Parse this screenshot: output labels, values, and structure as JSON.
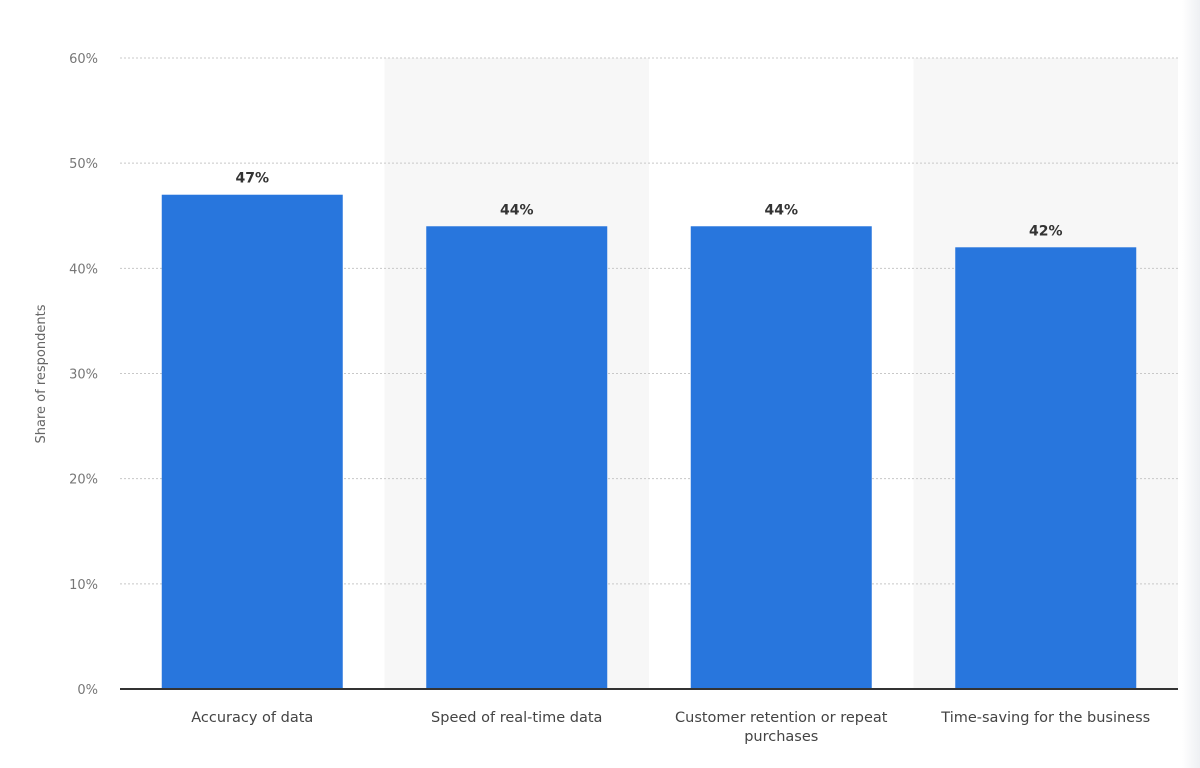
{
  "chart_data": {
    "type": "bar",
    "categories": [
      "Accuracy of data",
      "Speed of real-time data",
      "Customer retention or repeat purchases",
      "Time-saving for the business"
    ],
    "category_lines": [
      [
        "Accuracy of data"
      ],
      [
        "Speed of real-time data"
      ],
      [
        "Customer retention or repeat",
        "purchases"
      ],
      [
        "Time-saving for the business"
      ]
    ],
    "values": [
      47,
      44,
      44,
      42
    ],
    "data_labels": [
      "47%",
      "44%",
      "44%",
      "42%"
    ],
    "title": "",
    "xlabel": "",
    "ylabel": "Share of respondents",
    "ylim": [
      0,
      60
    ],
    "yticks": [
      0,
      10,
      20,
      30,
      40,
      50,
      60
    ],
    "ytick_labels": [
      "0%",
      "10%",
      "20%",
      "30%",
      "40%",
      "50%",
      "60%"
    ],
    "grid": true,
    "legend": "none",
    "colors": {
      "bar": "#2876dd",
      "band": "#f7f7f7",
      "grid": "#c8c8c8",
      "axis": "#333333",
      "text": "#666666"
    }
  }
}
